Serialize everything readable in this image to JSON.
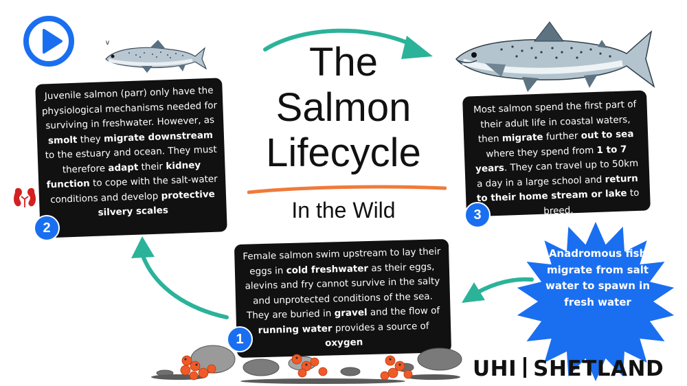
{
  "title": {
    "line1": "The",
    "line2": "Salmon",
    "line3": "Lifecycle"
  },
  "subtitle": "In the Wild",
  "small_fish_mark": "v",
  "steps": [
    {
      "number": "1",
      "segments": [
        {
          "t": "Female salmon swim upstream to lay their eggs in ",
          "b": false
        },
        {
          "t": "cold freshwater",
          "b": true
        },
        {
          "t": " as their eggs, alevins and fry cannot survive in the salty and unprotected conditions of the sea.  They are buried in ",
          "b": false
        },
        {
          "t": "gravel",
          "b": true
        },
        {
          "t": " and the flow of ",
          "b": false
        },
        {
          "t": "running water",
          "b": true
        },
        {
          "t": " provides a source of ",
          "b": false
        },
        {
          "t": "oxygen",
          "b": true
        }
      ]
    },
    {
      "number": "2",
      "segments": [
        {
          "t": "Juvenile salmon (parr) only have the physiological mechanisms needed for surviving in freshwater. However, as ",
          "b": false
        },
        {
          "t": "smolt",
          "b": true
        },
        {
          "t": " they ",
          "b": false
        },
        {
          "t": "migrate downstream",
          "b": true
        },
        {
          "t": " to the estuary and ocean. They must therefore ",
          "b": false
        },
        {
          "t": "adapt",
          "b": true
        },
        {
          "t": " their ",
          "b": false
        },
        {
          "t": "kidney function",
          "b": true
        },
        {
          "t": " to  cope with the salt-water conditions and develop ",
          "b": false
        },
        {
          "t": "protective silvery scales",
          "b": true
        }
      ]
    },
    {
      "number": "3",
      "segments": [
        {
          "t": "Most salmon spend the first part of their adult life in coastal waters, then ",
          "b": false
        },
        {
          "t": "migrate",
          "b": true
        },
        {
          "t": " further ",
          "b": false
        },
        {
          "t": "out to sea",
          "b": true
        },
        {
          "t": " where they spend from ",
          "b": false
        },
        {
          "t": "1 to 7 years",
          "b": true
        },
        {
          "t": ". They can travel up to 50km a day in a large school and ",
          "b": false
        },
        {
          "t": "return to their home stream or lake",
          "b": true
        },
        {
          "t": " to breed.",
          "b": false
        }
      ]
    }
  ],
  "callout": "Anadromous fish migrate from salt water to spawn in fresh water",
  "logo": {
    "left": "UHI",
    "right": "SHETLAND"
  },
  "colors": {
    "accent_blue": "#1a6ff0",
    "arrow_teal": "#2bb39a",
    "underline_orange": "#f07a3a",
    "card_bg": "#111111",
    "egg_orange": "#f05a28",
    "kidney_red": "#d42020"
  },
  "icons": [
    "play-icon",
    "kidney-icon",
    "small-salmon",
    "large-salmon",
    "eggs-and-pebbles"
  ]
}
